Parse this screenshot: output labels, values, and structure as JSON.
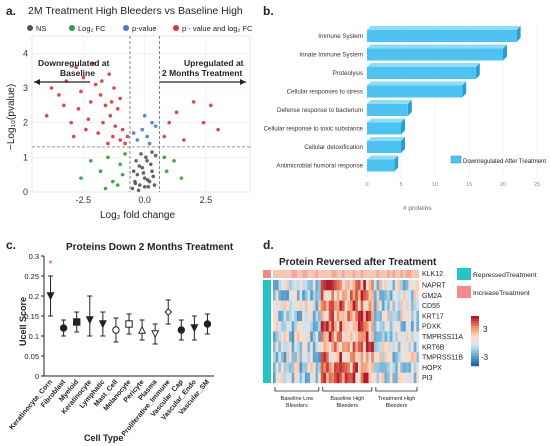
{
  "panels": {
    "a": {
      "letter": "a.",
      "title": "2M Treatment High Bleeders vs Baseline High",
      "legend": [
        {
          "label": "NS",
          "color": "#555555"
        },
        {
          "label": "Log₂ FC",
          "color": "#2e9e3a"
        },
        {
          "label": "p-value",
          "color": "#4a78d6"
        },
        {
          "label": "p - value and log₂ FC",
          "color": "#e0303a"
        }
      ],
      "ylabel": "−Log₁₀(pvalue)",
      "xlabel": "Log₂ fold change",
      "down_label_line1": "Downregulated at",
      "down_label_line2": "Baseline",
      "up_label_line1": "Upregulated at",
      "up_label_line2": "2 Months Treatment",
      "xticks": [
        "-2.5",
        "0.0",
        "2.5"
      ],
      "yticks": [
        "0",
        "1",
        "2",
        "3",
        "4"
      ]
    },
    "b": {
      "letter": "b.",
      "legend": "Downregulated After Treatment",
      "xlabel": "# proteins",
      "xticks": [
        "0",
        "5",
        "10",
        "15",
        "20",
        "25"
      ]
    },
    "c": {
      "letter": "c.",
      "title": "Proteins Down 2 Months Treatment",
      "ylabel": "Ucell Score",
      "xlabel": "Cell Type",
      "yticks": [
        "0",
        "0.05",
        "0.1",
        "0.15",
        "0.2",
        "0.25",
        "0.3"
      ]
    },
    "d": {
      "letter": "d.",
      "title": "Protein Reversed after Treatment",
      "top_gene": "KLK12",
      "genes": [
        "NAPRT",
        "GM2A",
        "CD55",
        "KRT17",
        "PDXK",
        "TMPRSS11A",
        "KRT6B",
        "TMPRSS11B",
        "HOPX",
        "PI3"
      ],
      "legend_items": [
        {
          "label": "RepressedTreatment",
          "color": "#27c4c4"
        },
        {
          "label": "IncreaseTreatment",
          "color": "#f08a85"
        }
      ],
      "scale_labels": [
        "3",
        "-3"
      ],
      "groups": [
        {
          "line1": "Baseline Low",
          "line2": "Bleeders"
        },
        {
          "line1": "Baseline High",
          "line2": "Bleeders"
        },
        {
          "line1": "Treatment High",
          "line2": "Bleeders"
        }
      ]
    }
  },
  "chart_data": [
    {
      "type": "scatter",
      "title": "2M Treatment High Bleeders vs Baseline High",
      "xlabel": "Log2 fold change",
      "ylabel": "-Log10(pvalue)",
      "xlim": [
        -4.6,
        4.3
      ],
      "ylim": [
        0,
        4.5
      ],
      "thresholds": {
        "x": [
          -0.6,
          0.6
        ],
        "y": 1.3
      },
      "series": [
        {
          "name": "NS",
          "color": "#555555",
          "points": [
            [
              -0.5,
              0.1
            ],
            [
              -0.4,
              0.3
            ],
            [
              -0.3,
              0.5
            ],
            [
              -0.2,
              0.2
            ],
            [
              -0.1,
              0.7
            ],
            [
              0.0,
              0.4
            ],
            [
              0.1,
              0.9
            ],
            [
              0.2,
              0.3
            ],
            [
              0.3,
              0.6
            ],
            [
              0.4,
              0.2
            ],
            [
              -0.35,
              0.9
            ],
            [
              0.15,
              0.15
            ],
            [
              -0.15,
              1.1
            ],
            [
              0.05,
              1.0
            ],
            [
              0.35,
              0.45
            ],
            [
              -0.45,
              0.6
            ],
            [
              0.25,
              0.8
            ],
            [
              -0.25,
              0.05
            ],
            [
              0.45,
              1.05
            ],
            [
              0.0,
              0.15
            ],
            [
              -0.05,
              0.55
            ],
            [
              0.12,
              0.35
            ],
            [
              -0.38,
              0.25
            ],
            [
              0.3,
              1.15
            ],
            [
              -0.22,
              0.75
            ]
          ]
        },
        {
          "name": "Log₂ FC",
          "color": "#2e9e3a",
          "points": [
            [
              -1.0,
              0.8
            ],
            [
              -1.3,
              0.3
            ],
            [
              -1.5,
              1.0
            ],
            [
              -0.9,
              0.5
            ],
            [
              -1.8,
              0.6
            ],
            [
              -2.2,
              0.9
            ],
            [
              -0.8,
              1.1
            ],
            [
              -1.1,
              0.2
            ],
            [
              0.9,
              0.6
            ],
            [
              1.2,
              0.9
            ],
            [
              1.5,
              0.4
            ],
            [
              0.8,
              1.0
            ],
            [
              -2.6,
              0.4
            ],
            [
              -1.6,
              0.1
            ]
          ]
        },
        {
          "name": "p-value",
          "color": "#4a78d6",
          "points": [
            [
              -0.3,
              1.5
            ],
            [
              -0.1,
              1.8
            ],
            [
              0.1,
              1.6
            ],
            [
              0.3,
              2.0
            ],
            [
              -0.45,
              1.7
            ],
            [
              0.2,
              1.4
            ],
            [
              0.45,
              1.9
            ],
            [
              0.0,
              2.2
            ]
          ]
        },
        {
          "name": "p - value and log₂ FC",
          "color": "#e0303a",
          "points": [
            [
              -1.0,
              1.5
            ],
            [
              -1.2,
              1.9
            ],
            [
              -1.4,
              2.2
            ],
            [
              -1.6,
              2.5
            ],
            [
              -1.8,
              2.8
            ],
            [
              -2.0,
              3.1
            ],
            [
              -2.2,
              2.6
            ],
            [
              -2.5,
              3.3
            ],
            [
              -2.8,
              3.6
            ],
            [
              -3.2,
              3.2
            ],
            [
              -3.5,
              2.8
            ],
            [
              -1.1,
              2.4
            ],
            [
              -1.3,
              1.6
            ],
            [
              -1.5,
              1.4
            ],
            [
              -1.7,
              2.0
            ],
            [
              -1.9,
              1.7
            ],
            [
              -2.3,
              2.1
            ],
            [
              -2.7,
              2.4
            ],
            [
              -3.0,
              2.0
            ],
            [
              -0.9,
              1.8
            ],
            [
              -0.8,
              1.4
            ],
            [
              -1.0,
              2.7
            ],
            [
              -1.25,
              3.0
            ],
            [
              -1.45,
              3.4
            ],
            [
              -2.1,
              3.7
            ],
            [
              -2.4,
              1.8
            ],
            [
              -2.9,
              1.6
            ],
            [
              -3.8,
              3.0
            ],
            [
              -4.0,
              2.2
            ],
            [
              -0.7,
              1.6
            ],
            [
              -1.35,
              2.6
            ],
            [
              -1.75,
              3.2
            ],
            [
              -2.6,
              2.9
            ],
            [
              -3.3,
              2.5
            ],
            [
              0.8,
              1.6
            ],
            [
              1.0,
              2.0
            ],
            [
              1.3,
              2.3
            ],
            [
              2.0,
              2.6
            ],
            [
              2.4,
              2.0
            ],
            [
              3.0,
              1.8
            ],
            [
              1.6,
              1.5
            ],
            [
              2.7,
              2.5
            ]
          ]
        }
      ]
    },
    {
      "type": "bar",
      "orientation": "horizontal",
      "categories": [
        "Immune System",
        "Innate Immune System",
        "Proteolysis",
        "Cellular responses to stress",
        "Defense response to bacterium",
        "Cellular response to toxic substance",
        "Cellular detoxification",
        "Antimicrobial humoral response"
      ],
      "series": [
        {
          "name": "Downregulated After Treatment",
          "values": [
            22,
            20,
            16,
            14,
            6,
            5,
            5,
            4
          ]
        }
      ],
      "xlabel": "# proteins",
      "xlim": [
        0,
        25
      ]
    },
    {
      "type": "scatter",
      "title": "Proteins Down 2 Months Treatment",
      "xlabel": "Cell Type",
      "ylabel": "Ucell Score",
      "ylim": [
        0,
        0.3
      ],
      "categories": [
        "Keratinocyte_Corn",
        "Fibroblast",
        "Myeloid",
        "Keratinocyte",
        "Lymphatic",
        "Mast_Cell",
        "Melanocyte",
        "Pericyte",
        "Plasma",
        "Proliferative_Immune",
        "Vascular_Cap",
        "Vascular_Endo",
        "Vascular_SM"
      ],
      "markers": [
        "triangle-down",
        "circle",
        "square",
        "triangle-down",
        "triangle-down",
        "circle-open",
        "square-open",
        "triangle-open",
        "triangle-down-open",
        "diamond-open",
        "circle",
        "triangle-down",
        "circle"
      ],
      "values": [
        0.2,
        0.12,
        0.135,
        0.14,
        0.13,
        0.115,
        0.13,
        0.115,
        0.105,
        0.16,
        0.115,
        0.12,
        0.13
      ],
      "error_low": [
        0.15,
        0.1,
        0.11,
        0.1,
        0.1,
        0.085,
        0.105,
        0.09,
        0.08,
        0.13,
        0.09,
        0.09,
        0.105
      ],
      "error_high": [
        0.25,
        0.14,
        0.16,
        0.2,
        0.16,
        0.145,
        0.155,
        0.14,
        0.13,
        0.19,
        0.14,
        0.15,
        0.155
      ],
      "outliers": [
        {
          "category": "Keratinocyte_Corn",
          "value": 0.28,
          "color": "#e0303a"
        }
      ]
    },
    {
      "type": "heatmap",
      "title": "Protein Reversed after Treatment",
      "rows": [
        "KLK12",
        "NAPRT",
        "GM2A",
        "CD55",
        "KRT17",
        "PDXK",
        "TMPRSS11A",
        "KRT6B",
        "TMPRSS11B",
        "HOPX",
        "PI3"
      ],
      "column_groups": [
        "Baseline Low Bleeders",
        "Baseline High Bleeders",
        "Treatment High Bleeders"
      ],
      "row_annotation": {
        "KLK12": "IncreaseTreatment",
        "others": "RepressedTreatment"
      },
      "color_range": [
        -3,
        3
      ]
    }
  ]
}
